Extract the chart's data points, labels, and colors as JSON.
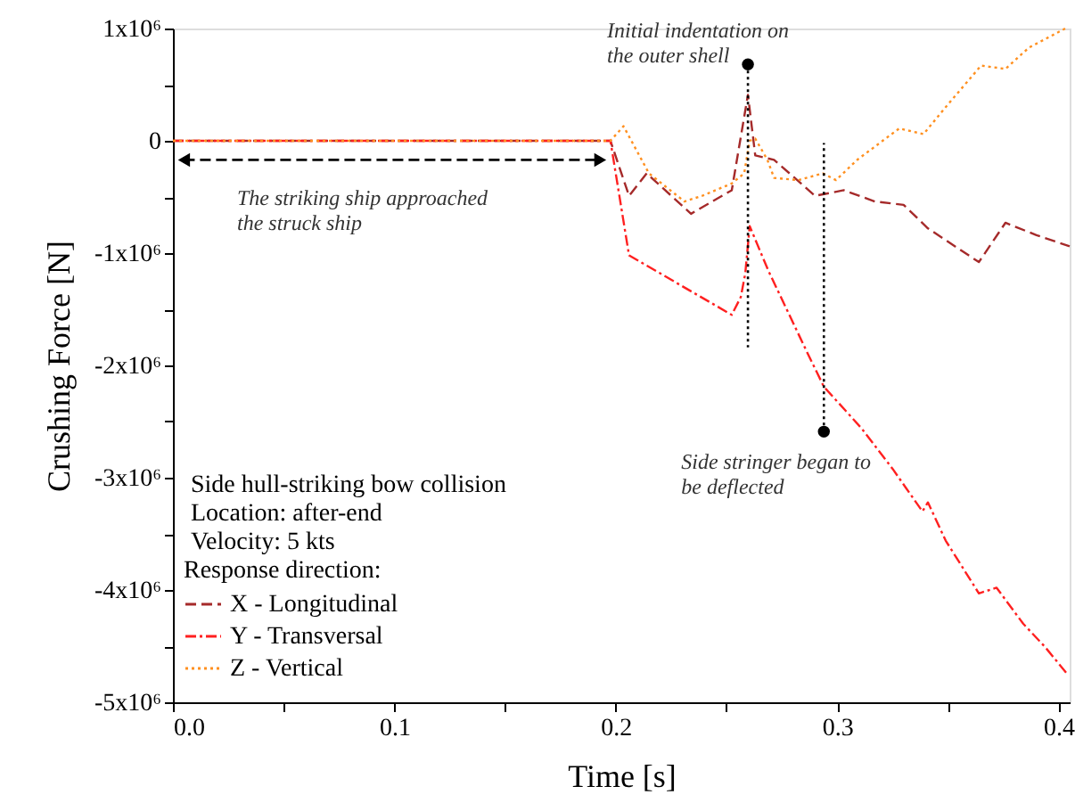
{
  "chart_data": {
    "type": "line",
    "xlabel": "Time [s]",
    "ylabel": "Crushing Force [N]",
    "legend_title": "Response direction:",
    "xlim": [
      0,
      0.405
    ],
    "xticks": [
      {
        "value": 0,
        "label": "0.0"
      },
      {
        "value": 0.05,
        "label": null
      },
      0.1,
      {
        "value": 0.15,
        "label": null
      },
      0.2,
      {
        "value": 0.25,
        "label": null
      },
      0.3,
      {
        "value": 0.35,
        "label": null
      },
      0.4
    ],
    "ylim": [
      -5000000,
      1000000
    ],
    "yticks": [
      {
        "value": -5000000,
        "label": "-5x10⁶"
      },
      {
        "value": -4500000,
        "label": null
      },
      {
        "value": -4000000,
        "label": "-4x10⁶"
      },
      {
        "value": -3500000,
        "label": null
      },
      {
        "value": -3000000,
        "label": "-3x10⁶"
      },
      {
        "value": -2500000,
        "label": null
      },
      {
        "value": -2000000,
        "label": "-2x10⁶"
      },
      {
        "value": -1500000,
        "label": null
      },
      {
        "value": -1000000,
        "label": "-1x10⁶"
      },
      {
        "value": -500000,
        "label": null
      },
      0,
      {
        "value": 500000,
        "label": null
      },
      {
        "value": 1000000,
        "label": "1x10⁶"
      }
    ],
    "grid": false,
    "legend": "bottom left",
    "series": [
      {
        "name": "X - Longitudinal",
        "color": "#a52a2a",
        "line_style": "dashed",
        "x": [
          0,
          0.1976,
          0.206,
          0.214,
          0.234,
          0.2524,
          0.2597,
          0.263,
          0.2715,
          0.2785,
          0.29,
          0.303,
          0.317,
          0.33,
          0.341,
          0.364,
          0.376,
          0.39,
          0.405
        ],
        "values": [
          0,
          0,
          -490000,
          -290000,
          -650000,
          -440000,
          410000,
          -130000,
          -170000,
          -290000,
          -490000,
          -440000,
          -540000,
          -570000,
          -780000,
          -1080000,
          -730000,
          -840000,
          -940000
        ]
      },
      {
        "name": "Y - Transversal",
        "color": "#ff2020",
        "line_style": "dashdot",
        "x": [
          0,
          0.1976,
          0.206,
          0.2524,
          0.2565,
          0.2585,
          0.2605,
          0.266,
          0.269,
          0.2861,
          0.294,
          0.311,
          0.325,
          0.3385,
          0.341,
          0.349,
          0.364,
          0.372,
          0.384,
          0.394,
          0.404
        ],
        "values": [
          0,
          0,
          -1020000,
          -1550000,
          -1390000,
          -1180000,
          -760000,
          -1020000,
          -1160000,
          -1870000,
          -2190000,
          -2560000,
          -2920000,
          -3300000,
          -3220000,
          -3560000,
          -4030000,
          -3980000,
          -4300000,
          -4510000,
          -4750000
        ]
      },
      {
        "name": "Z - Vertical",
        "color": "#ff9020",
        "line_style": "dotted",
        "x": [
          0,
          0.1976,
          0.2035,
          0.215,
          0.231,
          0.239,
          0.2524,
          0.258,
          0.2605,
          0.263,
          0.2685,
          0.2715,
          0.2825,
          0.2935,
          0.2995,
          0.309,
          0.328,
          0.339,
          0.349,
          0.365,
          0.376,
          0.3866,
          0.403
        ],
        "values": [
          0,
          0,
          130000,
          -290000,
          -540000,
          -490000,
          -380000,
          -290000,
          0,
          20000,
          -170000,
          -330000,
          -350000,
          -290000,
          -350000,
          -170000,
          110000,
          60000,
          300000,
          670000,
          640000,
          830000,
          1000000
        ]
      },
      {
        "color": "#000000",
        "line_style": "dashed",
        "marker": "triangle",
        "x": [
          0.005,
          0.193
        ],
        "values": [
          -170000,
          -170000
        ]
      },
      {
        "color": "#000000",
        "line_style": "dotted",
        "marker": "circle",
        "x": [
          0.2597,
          0.2597
        ],
        "values": [
          680000,
          -1840000
        ]
      },
      {
        "color": "#000000",
        "line_style": "dotted",
        "marker": "circle",
        "x": [
          0.294,
          0.294
        ],
        "values": [
          -2590000,
          -20000
        ]
      }
    ],
    "annotations": [
      "Side hull-striking bow collision",
      "Location: after-end",
      "Velocity: 5 kts",
      "The striking ship approached\nthe struck ship",
      {
        "text": "Initial indentation on\nthe outer shell",
        "x": 0.2597,
        "y": 680000
      },
      {
        "text": "Side stringer began to\nbe deflected",
        "x": 0.294,
        "y": -2590000
      }
    ]
  }
}
